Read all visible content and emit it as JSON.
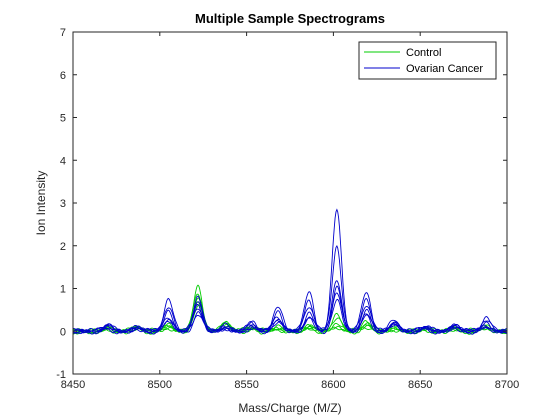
{
  "chart_data": {
    "type": "line",
    "title": "Multiple Sample Spectrograms",
    "xlabel": "Mass/Charge (M/Z)",
    "ylabel": "Ion Intensity",
    "xlim": [
      8450,
      8700
    ],
    "ylim": [
      -1,
      7
    ],
    "xticks": [
      8450,
      8500,
      8550,
      8600,
      8650,
      8700
    ],
    "yticks": [
      -1,
      0,
      1,
      2,
      3,
      4,
      5,
      6,
      7
    ],
    "grid": false,
    "legend_position": "top-right",
    "legend": [
      {
        "label": "Control",
        "color": "#00cc00"
      },
      {
        "label": "Ovarian Cancer",
        "color": "#0000cc"
      }
    ],
    "peaks": [
      8470,
      8487,
      8505,
      8522,
      8538,
      8553,
      8568,
      8586,
      8602,
      8619,
      8635,
      8653,
      8670,
      8688
    ],
    "series": [
      {
        "group": "Control",
        "color": "#00cc00",
        "values": [
          0.06,
          0.07,
          0.12,
          1.05,
          0.18,
          0.08,
          0.05,
          0.07,
          0.1,
          0.09,
          0.05,
          0.04,
          0.05,
          0.08
        ]
      },
      {
        "group": "Control",
        "color": "#00cc00",
        "values": [
          0.05,
          0.09,
          0.1,
          0.9,
          0.2,
          0.1,
          0.08,
          0.1,
          0.15,
          0.12,
          0.06,
          0.05,
          0.06,
          0.1
        ]
      },
      {
        "group": "Control",
        "color": "#00cc00",
        "values": [
          0.08,
          0.06,
          0.14,
          0.78,
          0.15,
          0.07,
          0.06,
          0.09,
          0.2,
          0.15,
          0.04,
          0.06,
          0.07,
          0.07
        ]
      },
      {
        "group": "Control",
        "color": "#00cc00",
        "values": [
          0.04,
          0.08,
          0.09,
          0.7,
          0.22,
          0.06,
          0.07,
          0.12,
          0.28,
          0.18,
          0.05,
          0.05,
          0.04,
          0.12
        ]
      },
      {
        "group": "Control",
        "color": "#00cc00",
        "values": [
          0.07,
          0.1,
          0.11,
          0.6,
          0.16,
          0.09,
          0.1,
          0.14,
          0.35,
          0.22,
          0.07,
          0.04,
          0.06,
          0.09
        ]
      },
      {
        "group": "Ovarian Cancer",
        "color": "#0000cc",
        "values": [
          0.18,
          0.12,
          0.72,
          0.8,
          0.12,
          0.22,
          0.55,
          0.92,
          2.85,
          0.92,
          0.3,
          0.12,
          0.18,
          0.3
        ]
      },
      {
        "group": "Ovarian Cancer",
        "color": "#0000cc",
        "values": [
          0.14,
          0.1,
          0.52,
          0.7,
          0.1,
          0.18,
          0.45,
          0.7,
          2.0,
          0.75,
          0.24,
          0.1,
          0.15,
          0.22
        ]
      },
      {
        "group": "Ovarian Cancer",
        "color": "#0000cc",
        "values": [
          0.12,
          0.08,
          0.45,
          0.6,
          0.08,
          0.15,
          0.35,
          0.58,
          1.25,
          0.62,
          0.2,
          0.09,
          0.12,
          0.18
        ]
      },
      {
        "group": "Ovarian Cancer",
        "color": "#0000cc",
        "values": [
          0.1,
          0.07,
          0.35,
          0.55,
          0.09,
          0.12,
          0.3,
          0.45,
          1.05,
          0.5,
          0.17,
          0.08,
          0.1,
          0.15
        ]
      },
      {
        "group": "Ovarian Cancer",
        "color": "#0000cc",
        "values": [
          0.08,
          0.06,
          0.3,
          0.45,
          0.07,
          0.1,
          0.25,
          0.35,
          0.88,
          0.42,
          0.14,
          0.07,
          0.09,
          0.12
        ]
      },
      {
        "group": "Ovarian Cancer",
        "color": "#0000cc",
        "values": [
          0.06,
          0.05,
          0.25,
          0.4,
          0.06,
          0.09,
          0.2,
          0.3,
          0.7,
          0.35,
          0.12,
          0.06,
          0.08,
          0.1
        ]
      }
    ]
  }
}
